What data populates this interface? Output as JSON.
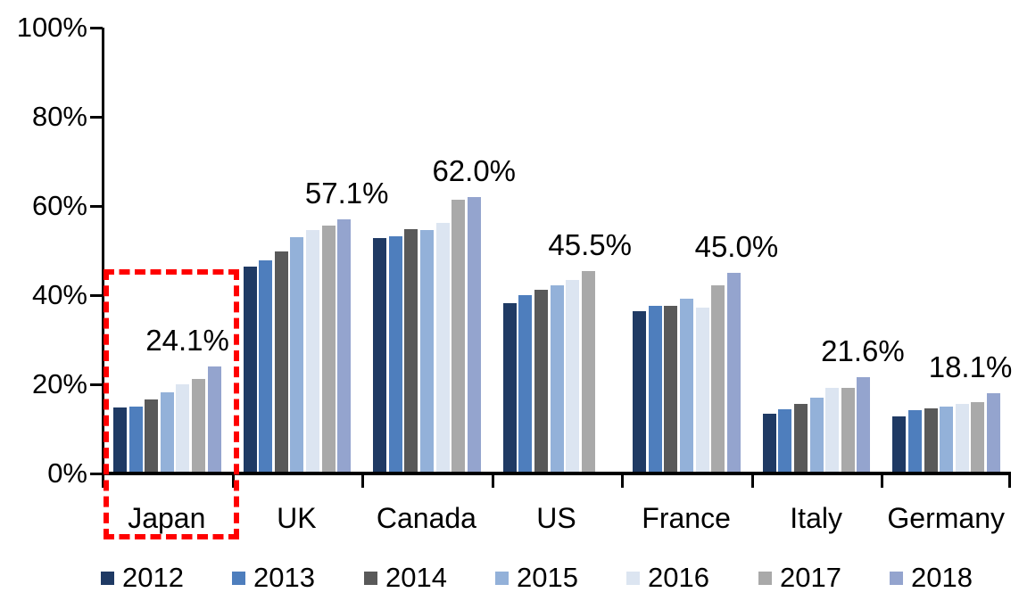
{
  "chart_data": {
    "type": "bar",
    "title": "",
    "xlabel": "",
    "ylabel": "",
    "ylim": [
      0,
      100
    ],
    "yticks": [
      "0%",
      "20%",
      "40%",
      "60%",
      "80%",
      "100%"
    ],
    "grid": false,
    "legend_position": "bottom",
    "categories": [
      "Japan",
      "UK",
      "Canada",
      "US",
      "France",
      "Italy",
      "Germany"
    ],
    "series": [
      {
        "name": "2012",
        "color": "#1F3A64",
        "values": [
          14.9,
          46.4,
          52.9,
          38.2,
          36.5,
          13.5,
          12.9
        ]
      },
      {
        "name": "2013",
        "color": "#4E7EBD",
        "values": [
          15.1,
          47.8,
          53.3,
          40.0,
          37.6,
          14.5,
          14.3
        ]
      },
      {
        "name": "2014",
        "color": "#595959",
        "values": [
          16.7,
          49.8,
          54.9,
          41.2,
          37.6,
          15.6,
          14.7
        ]
      },
      {
        "name": "2015",
        "color": "#93B1D9",
        "values": [
          18.2,
          53.1,
          54.7,
          42.2,
          39.3,
          17.1,
          15.1
        ]
      },
      {
        "name": "2016",
        "color": "#DCE5F1",
        "values": [
          20.1,
          54.6,
          56.2,
          43.5,
          37.2,
          19.2,
          15.6
        ]
      },
      {
        "name": "2017",
        "color": "#A9A9A9",
        "values": [
          21.3,
          55.7,
          61.5,
          45.5,
          42.3,
          19.3,
          16.1
        ]
      },
      {
        "name": "2018",
        "color": "#94A4CE",
        "values": [
          24.1,
          57.1,
          62.0,
          null,
          45.0,
          21.6,
          18.1
        ]
      }
    ],
    "annotations": [
      {
        "category": "Japan",
        "text": "24.1%"
      },
      {
        "category": "UK",
        "text": "57.1%"
      },
      {
        "category": "Canada",
        "text": "62.0%"
      },
      {
        "category": "US",
        "text": "45.5%"
      },
      {
        "category": "France",
        "text": "45.0%"
      },
      {
        "category": "Italy",
        "text": "21.6%"
      },
      {
        "category": "Germany",
        "text": "18.1%"
      }
    ],
    "highlight": {
      "category": "Japan",
      "color": "#FF0000",
      "style": "dashed"
    }
  }
}
